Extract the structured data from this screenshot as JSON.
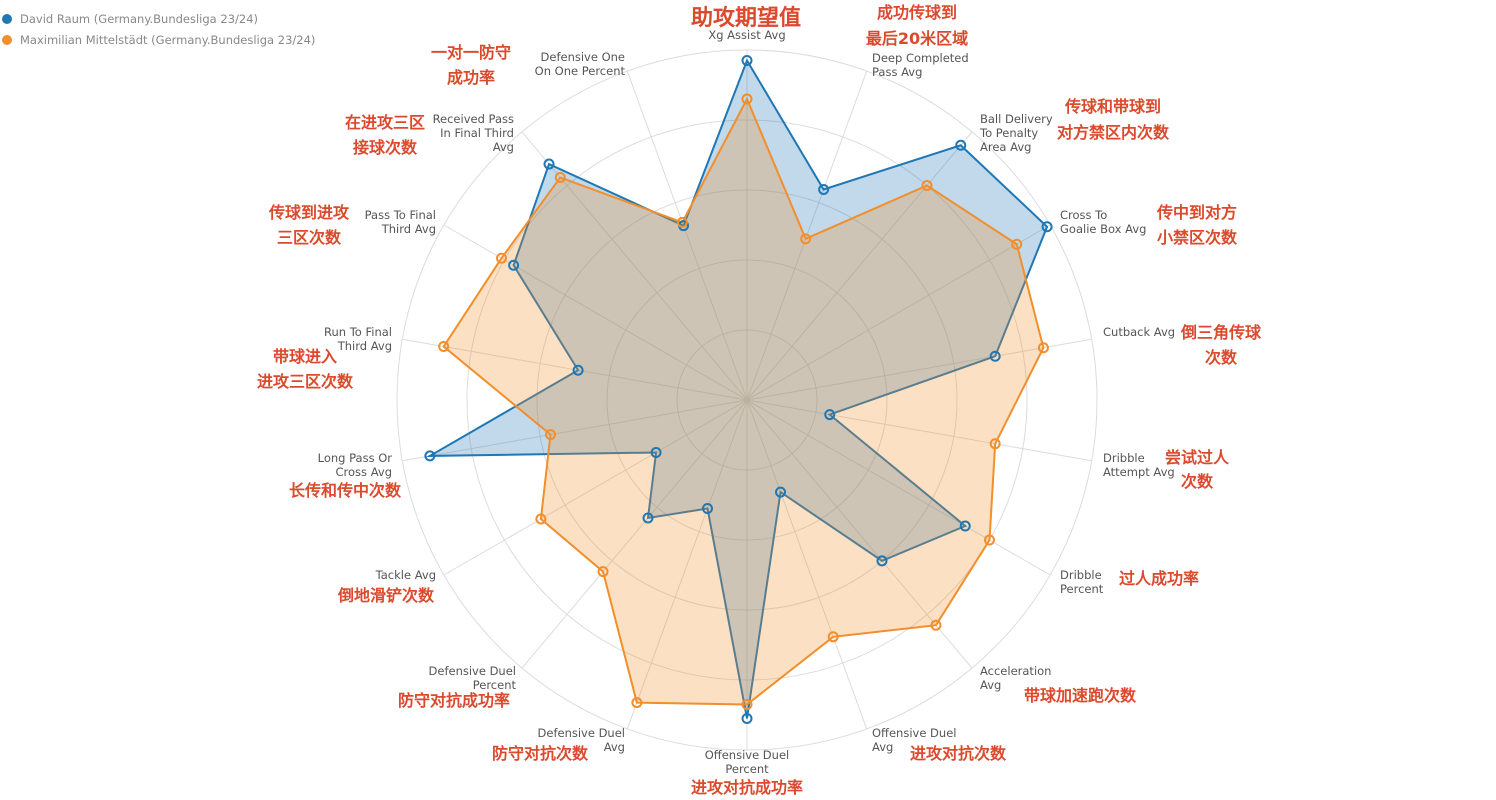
{
  "chart_data": {
    "type": "radar",
    "categories": [
      "Xg Assist Avg",
      "Deep Completed\nPass Avg",
      "Ball Delivery\nTo Penalty\nArea Avg",
      "Cross To\nGoalie Box Avg",
      "Cutback Avg",
      "Dribble\nAttempt Avg",
      "Dribble\nPercent",
      "Acceleration\nAvg",
      "Offensive Duel\nAvg",
      "Offensive Duel\nPercent",
      "Defensive Duel\nAvg",
      "Defensive Duel\nPercent",
      "Tackle Avg",
      "Long Pass Or\nCross Avg",
      "Run To Final\nThird Avg",
      "Pass To Final\nThird Avg",
      "Received Pass\nIn Final Third\nAvg",
      "Defensive One\nOn One Percent"
    ],
    "annotations": [
      "助攻期望值",
      "成功传球到\n最后20米区域",
      "传球和带球到\n对方禁区内次数",
      "传中到对方\n小禁区次数",
      "倒三角传球\n次数",
      "尝试过人\n次数",
      "过人成功率",
      "带球加速跑次数",
      "进攻对抗次数",
      "进攻对抗成功率",
      "防守对抗次数",
      "防守对抗成功率",
      "倒地滑铲次数",
      "长传和传中次数",
      "带球进入\n进攻三区次数",
      "传球到进攻\n三区次数",
      "在进攻三区\n接球次数",
      "一对一防守\n成功率"
    ],
    "series": [
      {
        "name": "David Raum (Germany.Bundesliga 23/24)",
        "color": "#1f77b4",
        "values": [
          97,
          64,
          95,
          99,
          72,
          24,
          72,
          60,
          28,
          91,
          33,
          44,
          30,
          92,
          49,
          77,
          88,
          53
        ]
      },
      {
        "name": "Maximilian Mittelstädt (Germany.Bundesliga 23/24)",
        "color": "#f28e2b",
        "values": [
          86,
          49,
          80,
          89,
          86,
          72,
          80,
          84,
          72,
          87,
          92,
          64,
          68,
          57,
          88,
          81,
          83,
          54
        ]
      }
    ],
    "rlim": [
      0,
      100
    ],
    "rticks": [
      20,
      40,
      60,
      80,
      100
    ],
    "grid": true,
    "legend": "top-left"
  }
}
